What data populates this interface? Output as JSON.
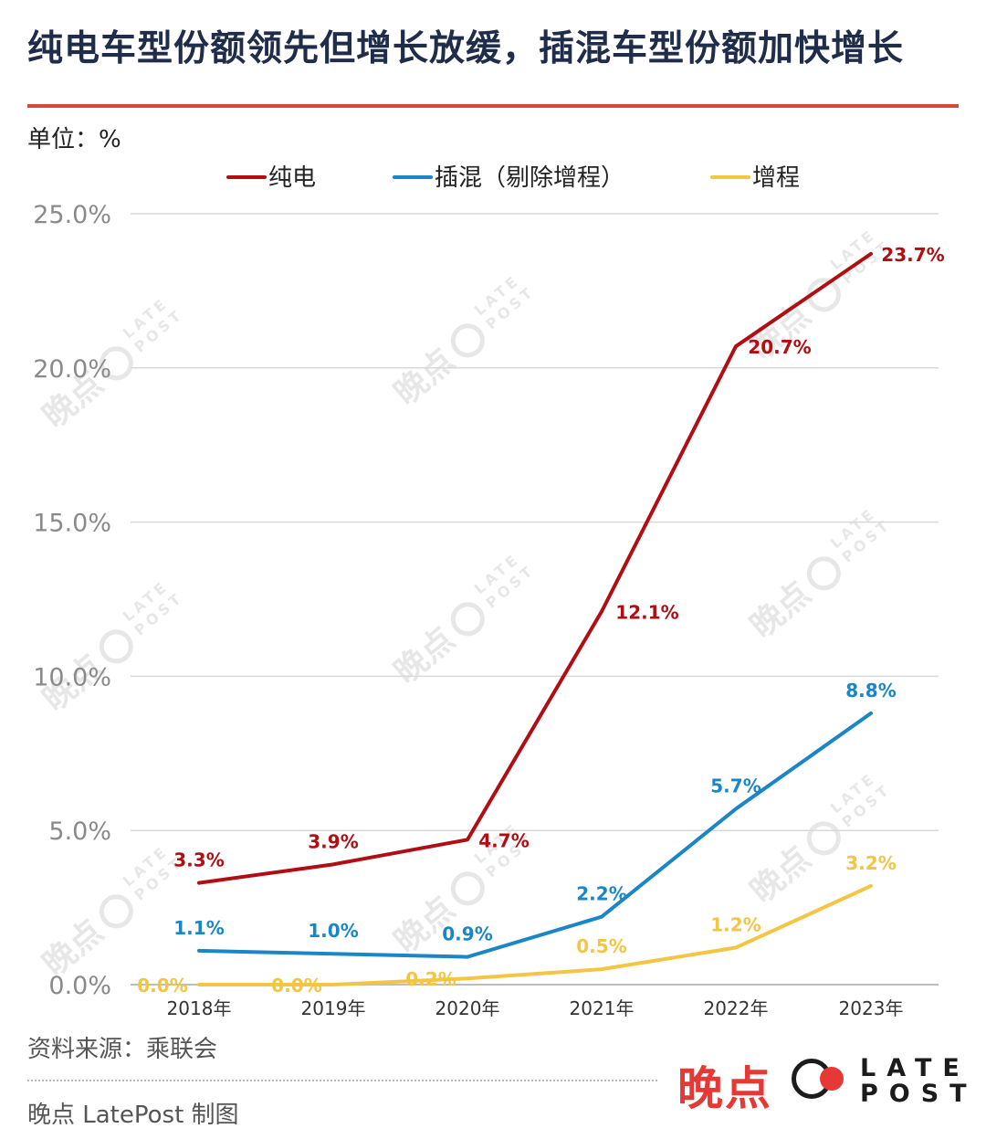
{
  "title": "纯电车型份额领先但增长放缓，插混车型份额加快增长",
  "unit_label": "单位：%",
  "source": "资料来源：乘联会",
  "credit": "晚点 LatePost 制图",
  "logo": {
    "cn": "晚点",
    "en_line1": "LATE",
    "en_line2": "POST"
  },
  "watermark": {
    "cn": "晚点",
    "en1": "LATE",
    "en2": "POST"
  },
  "chart_data": {
    "type": "line",
    "categories": [
      "2018年",
      "2019年",
      "2020年",
      "2021年",
      "2022年",
      "2023年"
    ],
    "ylim": [
      0,
      25
    ],
    "yticks": [
      0,
      5,
      10,
      15,
      20,
      25
    ],
    "ytick_labels": [
      "0.0%",
      "5.0%",
      "10.0%",
      "15.0%",
      "20.0%",
      "25.0%"
    ],
    "grid": true,
    "legend_position": "top",
    "series": [
      {
        "name": "纯电",
        "color": "#b00e12",
        "values": [
          3.3,
          3.9,
          4.7,
          12.1,
          20.7,
          23.7
        ],
        "labels": [
          "3.3%",
          "3.9%",
          "4.7%",
          "12.1%",
          "20.7%",
          "23.7%"
        ]
      },
      {
        "name": "插混（剔除增程）",
        "color": "#1a86c8",
        "values": [
          1.1,
          1.0,
          0.9,
          2.2,
          5.7,
          8.8
        ],
        "labels": [
          "1.1%",
          "1.0%",
          "0.9%",
          "2.2%",
          "5.7%",
          "8.8%"
        ]
      },
      {
        "name": "增程",
        "color": "#f3c542",
        "values": [
          0.0,
          0.0,
          0.2,
          0.5,
          1.2,
          3.2
        ],
        "labels": [
          "0.0%",
          "0.0%",
          "0.2%",
          "0.5%",
          "1.2%",
          "3.2%"
        ]
      }
    ]
  }
}
